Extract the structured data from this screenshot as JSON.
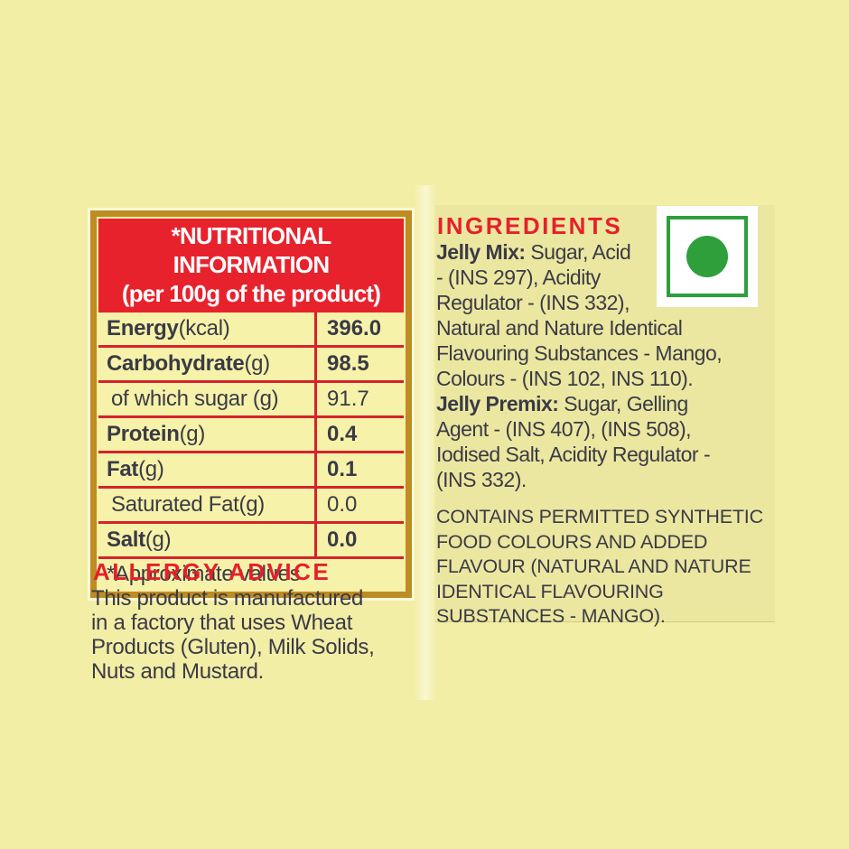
{
  "colors": {
    "background": "#f2eea6",
    "accent_red": "#e8222d",
    "table_border_gold": "#bd8c24",
    "text_dark": "#3a3a46",
    "veg_mark_green": "#2f9f3c"
  },
  "nutrition_table": {
    "header_line1": "*NUTRITIONAL INFORMATION",
    "header_line2": "(per 100g of the product)",
    "rows": [
      {
        "name": "Energy",
        "unit": " (kcal)",
        "value": "396.0"
      },
      {
        "name": "Carbohydrate",
        "unit": " (g)",
        "value": "98.5"
      },
      {
        "name": "",
        "unit": "of which sugar (g)",
        "value": "91.7"
      },
      {
        "name": "Protein",
        "unit": " (g)",
        "value": "0.4"
      },
      {
        "name": "Fat",
        "unit": " (g)",
        "value": "0.1"
      },
      {
        "name": "",
        "unit": "Saturated Fat(g)",
        "value": "0.0"
      },
      {
        "name": "Salt",
        "unit": " (g)",
        "value": "0.0"
      }
    ],
    "footnote": "*Approximate values"
  },
  "allergy": {
    "heading": "ALLERGY ADVICE",
    "lines": [
      "This product is manufactured",
      "in a factory that uses Wheat",
      "Products (Gluten), Milk Solids,",
      "Nuts and Mustard."
    ]
  },
  "ingredients": {
    "heading": "INGREDIENTS",
    "mix_label": "Jelly Mix:",
    "mix_first_line_rest": " Sugar, Acid",
    "mix_lines": [
      "- (INS 297), Acidity",
      "Regulator - (INS 332),",
      "Natural and Nature Identical",
      "Flavouring Substances - Mango,",
      "Colours - (INS 102, INS 110)."
    ],
    "premix_label": "Jelly Premix:",
    "premix_first_line_rest": " Sugar, Gelling",
    "premix_lines": [
      "Agent - (INS 407), (INS 508),",
      "Iodised Salt, Acidity Regulator -",
      "(INS 332)."
    ],
    "contains_lines": [
      "CONTAINS PERMITTED SYNTHETIC",
      "FOOD COLOURS AND ADDED",
      "FLAVOUR (NATURAL AND NATURE",
      "IDENTICAL FLAVOURING",
      "SUBSTANCES - MANGO)."
    ]
  },
  "veg_mark": {
    "meaning": "vegetarian symbol (green dot)"
  }
}
